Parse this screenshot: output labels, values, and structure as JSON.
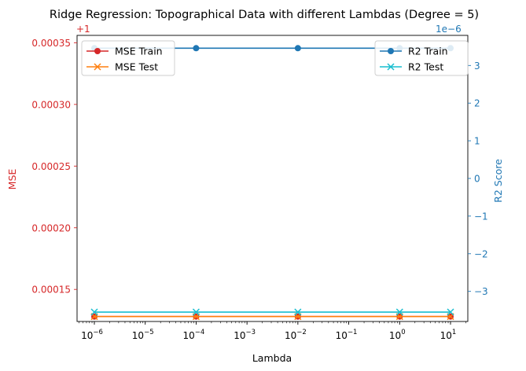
{
  "chart_data": {
    "type": "line",
    "title": "Ridge Regression: Topographical Data with different Lambdas (Degree = 5)",
    "xlabel": "Lambda",
    "xscale": "log",
    "x": [
      1e-06,
      0.0001,
      0.01,
      1,
      10
    ],
    "xticks": [
      {
        "exp": "−6",
        "value": 1e-06
      },
      {
        "exp": "−5",
        "value": 1e-05
      },
      {
        "exp": "−4",
        "value": 0.0001
      },
      {
        "exp": "−3",
        "value": 0.001
      },
      {
        "exp": "−2",
        "value": 0.01
      },
      {
        "exp": "−1",
        "value": 0.1
      },
      {
        "exp": "0",
        "value": 1
      },
      {
        "exp": "1",
        "value": 10
      }
    ],
    "x_tick_base": "10",
    "left_axis": {
      "label": "MSE",
      "offset_text": "+1",
      "color": "#d62728",
      "ticks": [
        "0.00015",
        "0.00020",
        "0.00025",
        "0.00030",
        "0.00035"
      ],
      "tick_values": [
        0.00015,
        0.0002,
        0.00025,
        0.0003,
        0.00035
      ],
      "ylim": [
        0.000124,
        0.000356
      ]
    },
    "right_axis": {
      "label": "R2 Score",
      "offset_text": "1e−6",
      "color": "#1f77b4",
      "ticks": [
        "−3",
        "−2",
        "−1",
        "0",
        "1",
        "2",
        "3"
      ],
      "tick_values": [
        -3,
        -2,
        -1,
        0,
        1,
        2,
        3
      ],
      "ylim": [
        -3.8,
        3.8
      ]
    },
    "series": [
      {
        "name": "MSE Train",
        "axis": "left",
        "color": "#d62728",
        "marker": "circle",
        "values": [
          0.000128,
          0.000128,
          0.000128,
          0.000128,
          0.000128
        ]
      },
      {
        "name": "MSE Test",
        "axis": "left",
        "color": "#ff7f0e",
        "marker": "x",
        "values": [
          0.000128,
          0.000128,
          0.000128,
          0.000128,
          0.000128
        ]
      },
      {
        "name": "R2 Train",
        "axis": "right",
        "color": "#1f77b4",
        "marker": "circle",
        "values": [
          3.46,
          3.46,
          3.46,
          3.46,
          3.46
        ]
      },
      {
        "name": "R2 Test",
        "axis": "right",
        "color": "#17becf",
        "marker": "x",
        "values": [
          -3.55,
          -3.55,
          -3.55,
          -3.55,
          -3.55
        ]
      }
    ],
    "legends": {
      "left": [
        "MSE Train",
        "MSE Test"
      ],
      "right": [
        "R2 Train",
        "R2 Test"
      ],
      "left_placement": "upper-left",
      "right_placement": "upper-right"
    },
    "grid": false
  }
}
